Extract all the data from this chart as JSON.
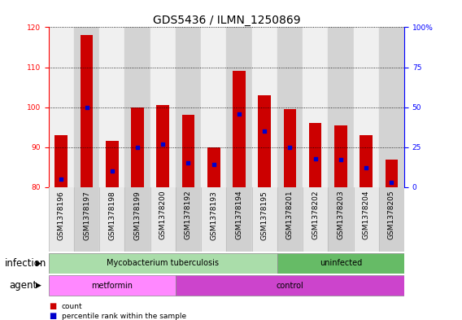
{
  "title": "GDS5436 / ILMN_1250869",
  "samples": [
    "GSM1378196",
    "GSM1378197",
    "GSM1378198",
    "GSM1378199",
    "GSM1378200",
    "GSM1378192",
    "GSM1378193",
    "GSM1378194",
    "GSM1378195",
    "GSM1378201",
    "GSM1378202",
    "GSM1378203",
    "GSM1378204",
    "GSM1378205"
  ],
  "bar_values": [
    93,
    118,
    91.5,
    100,
    100.5,
    98,
    90,
    109,
    103,
    99.5,
    96,
    95.5,
    93,
    87
  ],
  "bar_base": 80,
  "percentile_values": [
    5,
    50,
    10,
    25,
    27,
    15,
    14,
    46,
    35,
    25,
    18,
    17,
    12,
    3
  ],
  "ylim": [
    80,
    120
  ],
  "y2lim": [
    0,
    100
  ],
  "yticks": [
    80,
    90,
    100,
    110,
    120
  ],
  "y2ticks": [
    0,
    25,
    50,
    75,
    100
  ],
  "bar_color": "#cc0000",
  "percentile_color": "#0000cc",
  "alt_col_color": "#d3d3d3",
  "main_col_color": "#f0f0f0",
  "infection_groups": [
    {
      "label": "Mycobacterium tuberculosis",
      "start": 0,
      "end": 9,
      "color": "#aaddaa"
    },
    {
      "label": "uninfected",
      "start": 9,
      "end": 14,
      "color": "#66bb66"
    }
  ],
  "agent_groups": [
    {
      "label": "metformin",
      "start": 0,
      "end": 5,
      "color": "#ff88ff"
    },
    {
      "label": "control",
      "start": 5,
      "end": 14,
      "color": "#cc44cc"
    }
  ],
  "infection_label": "infection",
  "agent_label": "agent",
  "legend_count_label": "count",
  "legend_pct_label": "percentile rank within the sample",
  "bar_width": 0.5,
  "title_fontsize": 10,
  "tick_fontsize": 6.5,
  "label_fontsize": 8.5,
  "y2_tick_labels": [
    "0",
    "25",
    "50",
    "75",
    "100%"
  ]
}
